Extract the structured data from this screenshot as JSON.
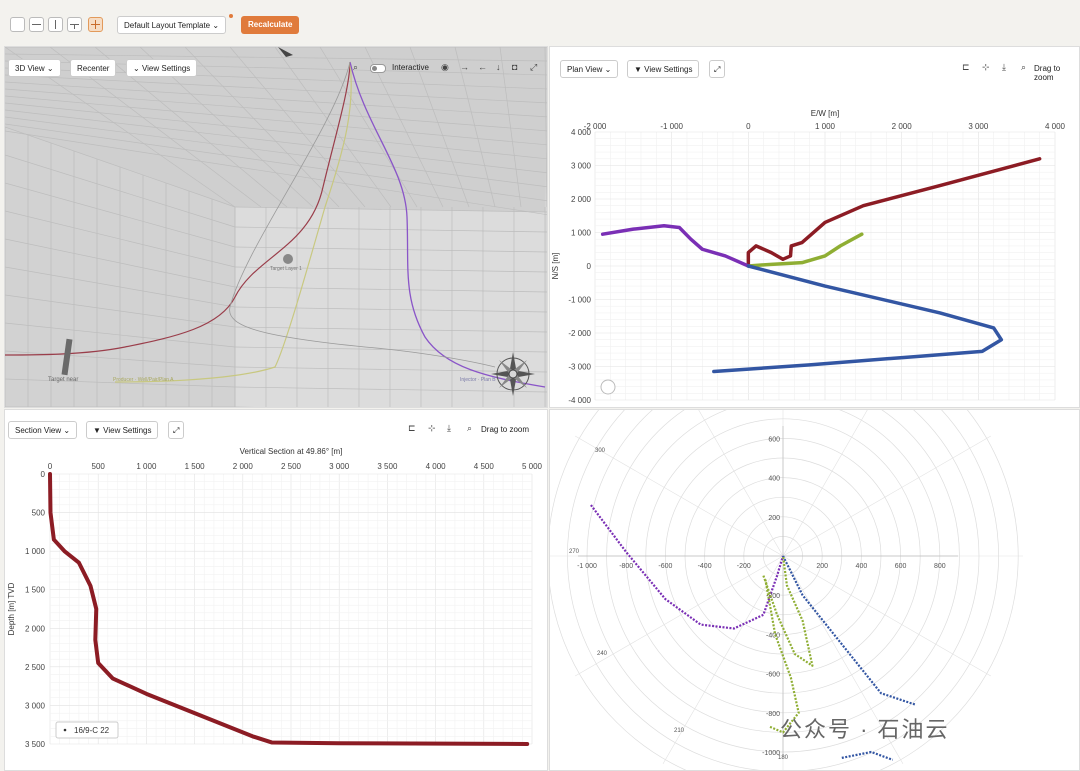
{
  "toolbar": {
    "layout_template": "Default Layout Template",
    "recalculate": "Recalculate"
  },
  "view3d": {
    "title": "3D View",
    "recenter": "Recenter",
    "settings": "View Settings",
    "interactive": "Interactive",
    "labels": {
      "target_near": "Target near",
      "target_layer": "Target Layer 1",
      "well_a": "Producer · Well/Pair/Plan A",
      "well_b": "Injector · Plan B"
    }
  },
  "plan": {
    "title": "Plan View",
    "settings": "View Settings",
    "drag_zoom": "Drag to zoom",
    "xlabel": "E/W [m]",
    "ylabel": "N/S [m]",
    "xticks": [
      "-2 000",
      "-1 000",
      "0",
      "1 000",
      "2 000",
      "3 000",
      "4 000"
    ],
    "yticks": [
      "4 000",
      "3 000",
      "2 000",
      "1 000",
      "0",
      "-1 000",
      "-2 000",
      "-3 000",
      "-4 000"
    ]
  },
  "section": {
    "title": "Section View",
    "settings": "View Settings",
    "drag_zoom": "Drag to zoom",
    "xlabel": "Vertical Section at 49.86° [m]",
    "ylabel": "Depth [m] TVD",
    "xticks": [
      "0",
      "500",
      "1 000",
      "1 500",
      "2 000",
      "2 500",
      "3 000",
      "3 500",
      "4 000",
      "4 500",
      "5 000"
    ],
    "yticks": [
      "0",
      "500",
      "1 000",
      "1 500",
      "2 000",
      "2 500",
      "3 000",
      "3 500"
    ],
    "legend": "16/9-C 22"
  },
  "polar": {
    "r_ticks": [
      "600",
      "400",
      "200",
      "-200",
      "-400",
      "-600",
      "-800",
      "-1000"
    ],
    "x_ticks": [
      "-1 000",
      "-800",
      "-600",
      "-400",
      "-200",
      "200",
      "400",
      "600",
      "800"
    ],
    "angle_labels": [
      "300",
      "270",
      "240",
      "210",
      "180"
    ]
  },
  "colors": {
    "maroon": "#8c1c24",
    "purple": "#7a2fb5",
    "green": "#8fae33",
    "blue": "#3356a3",
    "accent": "#e07b3c"
  },
  "watermark": "公众号 · 石油云"
}
